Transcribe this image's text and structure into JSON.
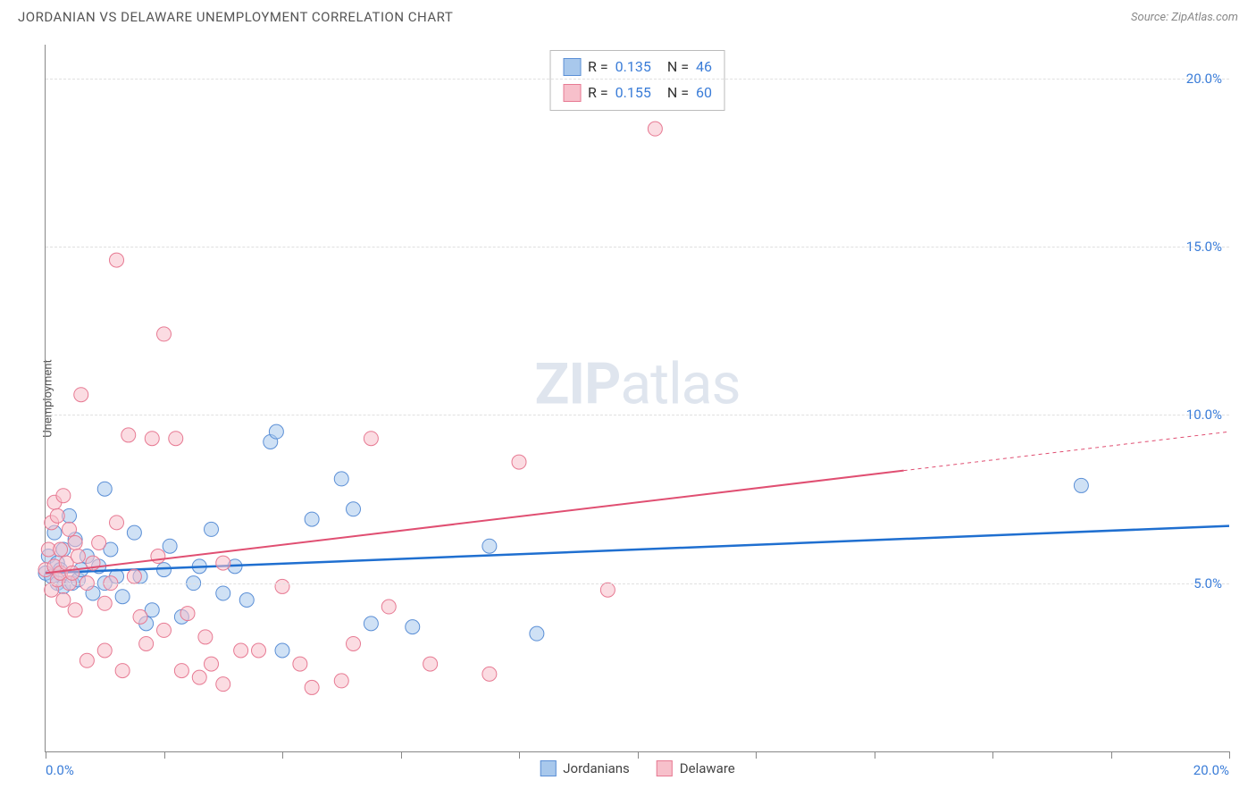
{
  "header": {
    "title": "JORDANIAN VS DELAWARE UNEMPLOYMENT CORRELATION CHART",
    "source": "Source: ZipAtlas.com"
  },
  "chart": {
    "type": "scatter",
    "ylabel": "Unemployment",
    "xlim": [
      0,
      20
    ],
    "ylim": [
      0,
      21
    ],
    "xticks": [
      0,
      2,
      4,
      6,
      8,
      10,
      12,
      14,
      16,
      18,
      20
    ],
    "xtick_labels_shown": {
      "0": "0.0%",
      "20": "20.0%"
    },
    "yticks": [
      5,
      10,
      15,
      20
    ],
    "ytick_labels": {
      "5": "5.0%",
      "10": "10.0%",
      "15": "15.0%",
      "20": "20.0%"
    },
    "grid_color": "#e0e0e0",
    "background_color": "#ffffff",
    "axis_color": "#888888",
    "tick_label_color": "#3b7dd8",
    "marker_radius": 8,
    "marker_opacity": 0.55,
    "watermark": {
      "text_bold": "ZIP",
      "text_rest": "atlas",
      "color": "rgba(150,170,200,0.3)",
      "fontsize": 64
    },
    "series": [
      {
        "name": "Jordanians",
        "color_fill": "#a8c8ec",
        "color_stroke": "#5b8fd6",
        "line_color": "#1f6fd0",
        "line_width": 2.5,
        "R": "0.135",
        "N": "46",
        "trend": {
          "x1": 0,
          "y1": 5.3,
          "x2": 20,
          "y2": 6.7,
          "dashed_from": null
        },
        "points": [
          [
            0.0,
            5.3
          ],
          [
            0.05,
            5.8
          ],
          [
            0.1,
            5.2
          ],
          [
            0.15,
            6.5
          ],
          [
            0.2,
            5.0
          ],
          [
            0.2,
            5.6
          ],
          [
            0.25,
            5.4
          ],
          [
            0.3,
            4.9
          ],
          [
            0.3,
            6.0
          ],
          [
            0.4,
            7.0
          ],
          [
            0.45,
            5.0
          ],
          [
            0.5,
            6.3
          ],
          [
            0.55,
            5.1
          ],
          [
            0.6,
            5.4
          ],
          [
            0.7,
            5.8
          ],
          [
            0.8,
            4.7
          ],
          [
            0.9,
            5.5
          ],
          [
            1.0,
            7.8
          ],
          [
            1.0,
            5.0
          ],
          [
            1.1,
            6.0
          ],
          [
            1.2,
            5.2
          ],
          [
            1.3,
            4.6
          ],
          [
            1.5,
            6.5
          ],
          [
            1.6,
            5.2
          ],
          [
            1.7,
            3.8
          ],
          [
            1.8,
            4.2
          ],
          [
            2.0,
            5.4
          ],
          [
            2.1,
            6.1
          ],
          [
            2.3,
            4.0
          ],
          [
            2.5,
            5.0
          ],
          [
            2.6,
            5.5
          ],
          [
            2.8,
            6.6
          ],
          [
            3.0,
            4.7
          ],
          [
            3.2,
            5.5
          ],
          [
            3.4,
            4.5
          ],
          [
            3.8,
            9.2
          ],
          [
            3.9,
            9.5
          ],
          [
            4.0,
            3.0
          ],
          [
            4.5,
            6.9
          ],
          [
            5.0,
            8.1
          ],
          [
            5.2,
            7.2
          ],
          [
            5.5,
            3.8
          ],
          [
            6.2,
            3.7
          ],
          [
            7.5,
            6.1
          ],
          [
            8.3,
            3.5
          ],
          [
            17.5,
            7.9
          ]
        ]
      },
      {
        "name": "Delaware",
        "color_fill": "#f7c0cb",
        "color_stroke": "#e77a93",
        "line_color": "#e04f72",
        "line_width": 2,
        "R": "0.155",
        "N": "60",
        "trend": {
          "x1": 0,
          "y1": 5.3,
          "x2": 20,
          "y2": 9.5,
          "dashed_from": 14.5
        },
        "points": [
          [
            0.0,
            5.4
          ],
          [
            0.05,
            6.0
          ],
          [
            0.1,
            4.8
          ],
          [
            0.1,
            6.8
          ],
          [
            0.15,
            5.5
          ],
          [
            0.15,
            7.4
          ],
          [
            0.2,
            5.1
          ],
          [
            0.2,
            7.0
          ],
          [
            0.25,
            5.3
          ],
          [
            0.25,
            6.0
          ],
          [
            0.3,
            4.5
          ],
          [
            0.3,
            7.6
          ],
          [
            0.35,
            5.6
          ],
          [
            0.4,
            5.0
          ],
          [
            0.4,
            6.6
          ],
          [
            0.45,
            5.3
          ],
          [
            0.5,
            4.2
          ],
          [
            0.5,
            6.2
          ],
          [
            0.55,
            5.8
          ],
          [
            0.6,
            10.6
          ],
          [
            0.7,
            5.0
          ],
          [
            0.7,
            2.7
          ],
          [
            0.8,
            5.6
          ],
          [
            0.9,
            6.2
          ],
          [
            1.0,
            4.4
          ],
          [
            1.0,
            3.0
          ],
          [
            1.1,
            5.0
          ],
          [
            1.2,
            6.8
          ],
          [
            1.2,
            14.6
          ],
          [
            1.3,
            2.4
          ],
          [
            1.4,
            9.4
          ],
          [
            1.5,
            5.2
          ],
          [
            1.6,
            4.0
          ],
          [
            1.7,
            3.2
          ],
          [
            1.8,
            9.3
          ],
          [
            1.9,
            5.8
          ],
          [
            2.0,
            12.4
          ],
          [
            2.0,
            3.6
          ],
          [
            2.2,
            9.3
          ],
          [
            2.3,
            2.4
          ],
          [
            2.4,
            4.1
          ],
          [
            2.6,
            2.2
          ],
          [
            2.7,
            3.4
          ],
          [
            2.8,
            2.6
          ],
          [
            3.0,
            5.6
          ],
          [
            3.0,
            2.0
          ],
          [
            3.3,
            3.0
          ],
          [
            3.6,
            3.0
          ],
          [
            4.0,
            4.9
          ],
          [
            4.3,
            2.6
          ],
          [
            4.5,
            1.9
          ],
          [
            5.0,
            2.1
          ],
          [
            5.2,
            3.2
          ],
          [
            5.5,
            9.3
          ],
          [
            5.8,
            4.3
          ],
          [
            6.5,
            2.6
          ],
          [
            7.5,
            2.3
          ],
          [
            8.0,
            8.6
          ],
          [
            9.5,
            4.8
          ],
          [
            10.3,
            18.5
          ]
        ]
      }
    ]
  },
  "legend_top": {
    "rows": [
      {
        "swatch_fill": "#a8c8ec",
        "swatch_stroke": "#5b8fd6",
        "r_label": "R =",
        "r_val": "0.135",
        "n_label": "N =",
        "n_val": "46"
      },
      {
        "swatch_fill": "#f7c0cb",
        "swatch_stroke": "#e77a93",
        "r_label": "R =",
        "r_val": "0.155",
        "n_label": "N =",
        "n_val": "60"
      }
    ]
  },
  "legend_bottom": {
    "items": [
      {
        "swatch_fill": "#a8c8ec",
        "swatch_stroke": "#5b8fd6",
        "label": "Jordanians"
      },
      {
        "swatch_fill": "#f7c0cb",
        "swatch_stroke": "#e77a93",
        "label": "Delaware"
      }
    ]
  }
}
